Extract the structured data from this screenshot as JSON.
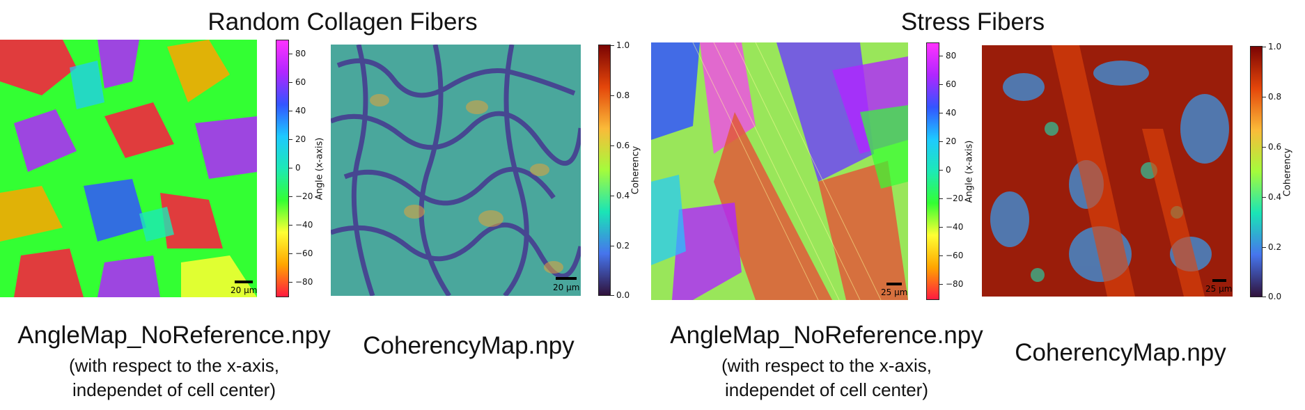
{
  "sections": [
    {
      "title": "Random Collagen Fibers"
    },
    {
      "title": "Stress Fibers"
    }
  ],
  "panels": [
    {
      "caption": "AngleMap_NoReference.npy",
      "subcaption_line1": "(with respect to the x-axis,",
      "subcaption_line2": "independet of cell center)",
      "scale_label": "20 µm",
      "colorbar_label": "Angle (x-axis)",
      "colorbar_ticks": [
        "80",
        "60",
        "40",
        "20",
        "0",
        "−20",
        "−40",
        "−60",
        "−80"
      ]
    },
    {
      "caption": "CoherencyMap.npy",
      "scale_label": "20 µm",
      "colorbar_label": "Coherency",
      "colorbar_ticks": [
        "1.0",
        "0.8",
        "0.6",
        "0.4",
        "0.2",
        "0.0"
      ]
    },
    {
      "caption": "AngleMap_NoReference.npy",
      "subcaption_line1": "(with respect to the x-axis,",
      "subcaption_line2": "independet of cell center)",
      "scale_label": "25 µm",
      "colorbar_label": "Angle (x-axis)",
      "colorbar_ticks": [
        "80",
        "60",
        "40",
        "20",
        "0",
        "−20",
        "−40",
        "−60",
        "−80"
      ]
    },
    {
      "caption": "CoherencyMap.npy",
      "scale_label": "25 µm",
      "colorbar_label": "Coherency",
      "colorbar_ticks": [
        "1.0",
        "0.8",
        "0.6",
        "0.4",
        "0.2",
        "0.0"
      ]
    }
  ],
  "colors": {
    "angle_colormap": [
      "#ff1a40",
      "#ffa500",
      "#ffff33",
      "#33ff33",
      "#1de9b6",
      "#1ec9ff",
      "#3355ff",
      "#b026ff",
      "#ff33ff"
    ],
    "coherency_colormap": [
      "#30123b",
      "#4675ed",
      "#1ae4b6",
      "#a4fc3c",
      "#faba39",
      "#e4460a",
      "#7a0403"
    ]
  }
}
